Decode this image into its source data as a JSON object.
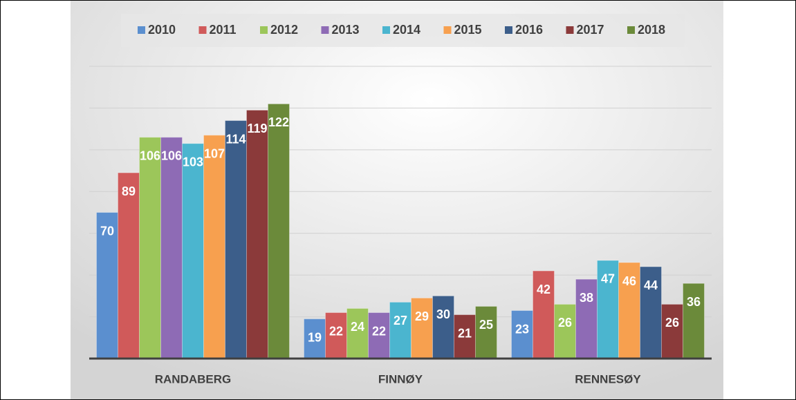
{
  "chart_data": {
    "type": "bar",
    "categories": [
      "RANDABERG",
      "FINNØY",
      "RENNESØY"
    ],
    "series": [
      {
        "name": "2010",
        "color": "#5b8fcf",
        "values": [
          70,
          19,
          23
        ]
      },
      {
        "name": "2011",
        "color": "#d05a5a",
        "values": [
          89,
          22,
          42
        ]
      },
      {
        "name": "2012",
        "color": "#9cc65a",
        "values": [
          106,
          24,
          26
        ]
      },
      {
        "name": "2013",
        "color": "#8e6bb5",
        "values": [
          106,
          22,
          38
        ]
      },
      {
        "name": "2014",
        "color": "#4bb5cf",
        "values": [
          103,
          27,
          47
        ]
      },
      {
        "name": "2015",
        "color": "#f7a04f",
        "values": [
          107,
          29,
          46
        ]
      },
      {
        "name": "2016",
        "color": "#3c5e8a",
        "values": [
          114,
          30,
          44
        ]
      },
      {
        "name": "2017",
        "color": "#8b3a3a",
        "values": [
          119,
          21,
          26
        ]
      },
      {
        "name": "2018",
        "color": "#6b8a3a",
        "values": [
          122,
          25,
          36
        ]
      }
    ],
    "ylim": [
      0,
      140
    ],
    "yticks": [
      0,
      20,
      40,
      60,
      80,
      100,
      120,
      140
    ],
    "grid": true,
    "legend": "top"
  }
}
